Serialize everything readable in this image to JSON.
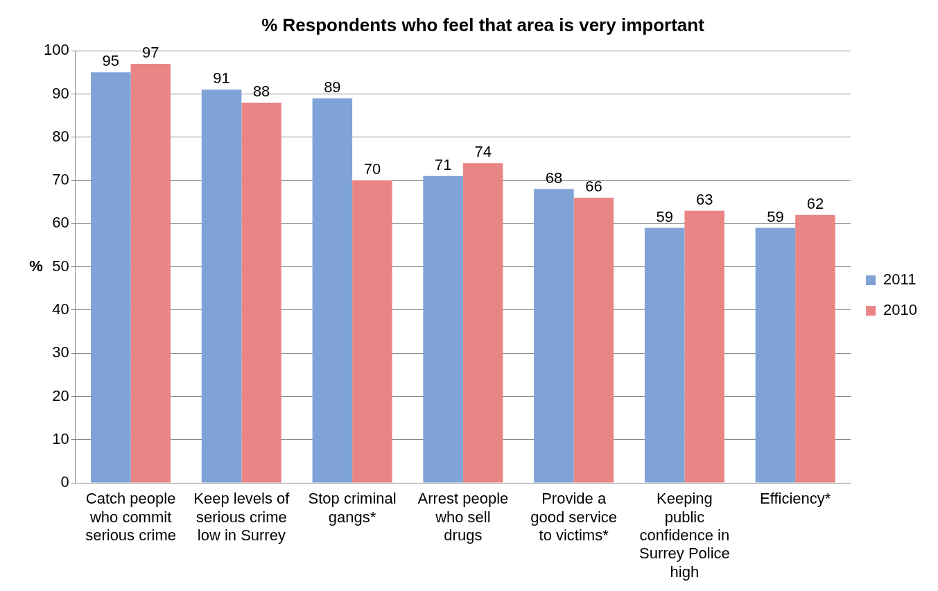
{
  "chart_data": {
    "type": "bar",
    "title": "% Respondents who feel that area is very important",
    "ylabel": "%",
    "categories": [
      "Catch people who commit serious crime",
      "Keep levels of serious crime low in Surrey",
      "Stop criminal gangs*",
      "Arrest people who sell drugs",
      "Provide a good service to victims*",
      "Keeping public confidence in Surrey Police high",
      "Efficiency*"
    ],
    "series": [
      {
        "name": "2011",
        "color": "#7fa3d6",
        "values": [
          95,
          91,
          89,
          71,
          68,
          59,
          59
        ]
      },
      {
        "name": "2010",
        "color": "#ea8585",
        "values": [
          97,
          88,
          70,
          74,
          66,
          63,
          62
        ]
      }
    ],
    "ylim": [
      0,
      100
    ],
    "yticks": [
      0,
      10,
      20,
      30,
      40,
      50,
      60,
      70,
      80,
      90,
      100
    ],
    "grid": "y",
    "legend": "right",
    "data_labels": true
  }
}
